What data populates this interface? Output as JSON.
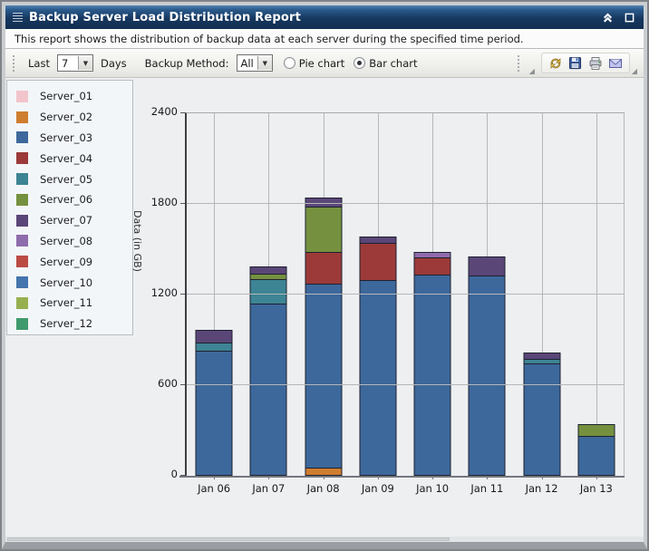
{
  "window": {
    "title": "Backup Server Load Distribution Report",
    "description": "This report shows the distribution of backup data at each server during the specified time period."
  },
  "toolbar": {
    "last_label": "Last",
    "days_value": "7",
    "days_label": "Days",
    "backup_method_label": "Backup Method:",
    "backup_method_value": "All",
    "radio_pie_label": "Pie chart",
    "radio_bar_label": "Bar chart",
    "selected_chart_type": "Bar chart",
    "action_icons": [
      "refresh-icon",
      "save-icon",
      "print-icon",
      "email-icon"
    ]
  },
  "legend": {
    "items": [
      {
        "label": "Server_01",
        "color": "#f2c4cc"
      },
      {
        "label": "Server_02",
        "color": "#cf7d2e"
      },
      {
        "label": "Server_03",
        "color": "#3d689b"
      },
      {
        "label": "Server_04",
        "color": "#9c3a39"
      },
      {
        "label": "Server_05",
        "color": "#3d8494"
      },
      {
        "label": "Server_06",
        "color": "#75913f"
      },
      {
        "label": "Server_07",
        "color": "#5a4677"
      },
      {
        "label": "Server_08",
        "color": "#8f6cac"
      },
      {
        "label": "Server_09",
        "color": "#bb4a44"
      },
      {
        "label": "Server_10",
        "color": "#4475ad"
      },
      {
        "label": "Server_11",
        "color": "#96b050"
      },
      {
        "label": "Server_12",
        "color": "#3f9a6d"
      }
    ]
  },
  "chart_data": {
    "type": "bar",
    "stacked": true,
    "ylabel": "Data (in GB)",
    "ylim": [
      0,
      2400
    ],
    "yticks": [
      0,
      600,
      1200,
      1800,
      2400
    ],
    "grid": true,
    "legend_position": "left",
    "categories": [
      "Jan 06",
      "Jan 07",
      "Jan 08",
      "Jan 09",
      "Jan 10",
      "Jan 11",
      "Jan 12",
      "Jan 13"
    ],
    "series": [
      {
        "name": "Server_01",
        "color": "#f2c4cc",
        "values": [
          0,
          0,
          0,
          0,
          0,
          0,
          0,
          0
        ]
      },
      {
        "name": "Server_02",
        "color": "#cf7d2e",
        "values": [
          0,
          0,
          55,
          0,
          0,
          0,
          0,
          0
        ]
      },
      {
        "name": "Server_03",
        "color": "#3d689b",
        "values": [
          830,
          1140,
          1220,
          1295,
          1330,
          1325,
          745,
          265
        ]
      },
      {
        "name": "Server_04",
        "color": "#9c3a39",
        "values": [
          0,
          0,
          210,
          245,
          115,
          0,
          0,
          0
        ]
      },
      {
        "name": "Server_05",
        "color": "#3d8494",
        "values": [
          50,
          160,
          0,
          0,
          0,
          0,
          30,
          0
        ]
      },
      {
        "name": "Server_06",
        "color": "#75913f",
        "values": [
          0,
          40,
          300,
          0,
          0,
          0,
          0,
          80
        ]
      },
      {
        "name": "Server_07",
        "color": "#5a4677",
        "values": [
          85,
          45,
          55,
          45,
          0,
          125,
          40,
          0
        ]
      },
      {
        "name": "Server_08",
        "color": "#8f6cac",
        "values": [
          0,
          0,
          0,
          0,
          35,
          0,
          0,
          0
        ]
      },
      {
        "name": "Server_09",
        "color": "#bb4a44",
        "values": [
          0,
          0,
          0,
          0,
          0,
          0,
          0,
          0
        ]
      },
      {
        "name": "Server_10",
        "color": "#4475ad",
        "values": [
          0,
          0,
          0,
          0,
          0,
          0,
          0,
          0
        ]
      },
      {
        "name": "Server_11",
        "color": "#96b050",
        "values": [
          0,
          0,
          0,
          0,
          0,
          0,
          0,
          0
        ]
      },
      {
        "name": "Server_12",
        "color": "#3f9a6d",
        "values": [
          0,
          0,
          0,
          0,
          0,
          0,
          0,
          0
        ]
      }
    ],
    "totals": [
      965,
      1385,
      1840,
      1585,
      1480,
      1450,
      815,
      345
    ]
  }
}
